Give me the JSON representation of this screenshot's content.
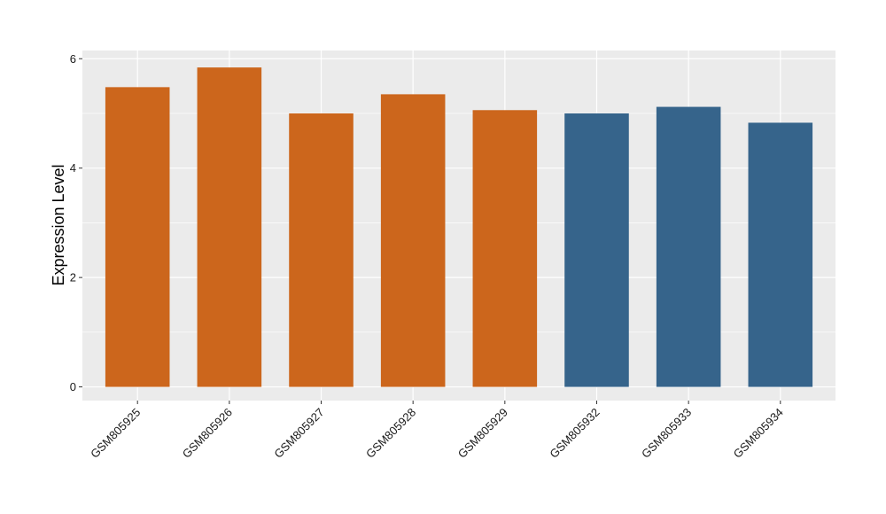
{
  "chart_data": {
    "type": "bar",
    "title": "",
    "xlabel": "",
    "ylabel": "Expression Level",
    "categories": [
      "GSM805925",
      "GSM805926",
      "GSM805927",
      "GSM805928",
      "GSM805929",
      "GSM805932",
      "GSM805933",
      "GSM805934"
    ],
    "values": [
      5.48,
      5.84,
      5.0,
      5.35,
      5.06,
      5.0,
      5.12,
      4.83
    ],
    "groups": [
      0,
      0,
      0,
      0,
      0,
      1,
      1,
      1
    ],
    "group_colors": [
      "#CC661C",
      "#36648B"
    ],
    "ylim": [
      -0.25,
      6.15
    ],
    "yticks": [
      0,
      2,
      4,
      6
    ],
    "grid": true,
    "panel_background": "#EBEBEB",
    "gridline_color": "#FFFFFF",
    "legend": "none"
  }
}
